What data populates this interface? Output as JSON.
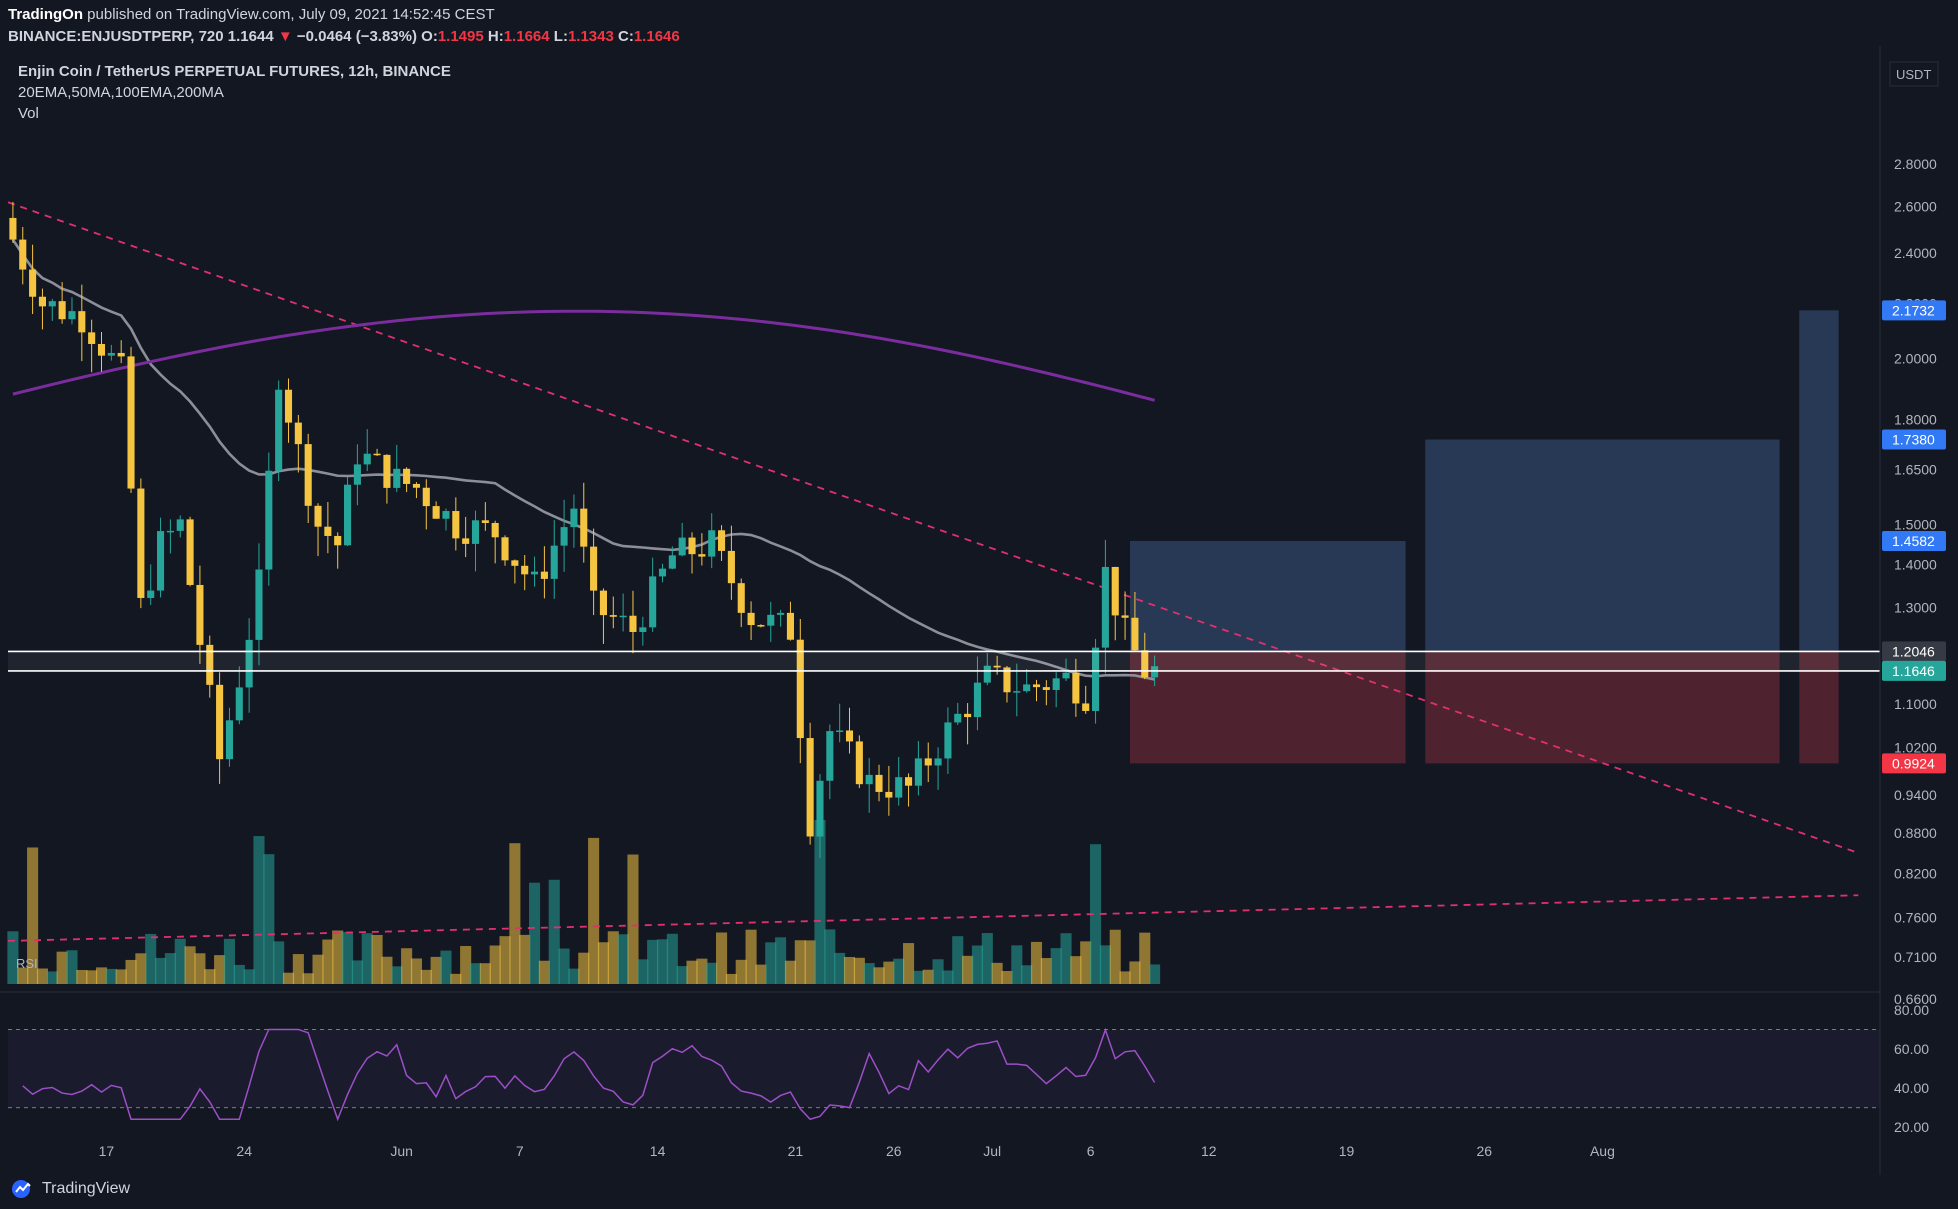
{
  "header": {
    "publisher": "TradingOn",
    "published_text": "published on TradingView.com, July 09, 2021 14:52:45 CEST",
    "symbol_line": "BINANCE:ENJUSDTPERP, 720",
    "last": "1.1644",
    "change": "−0.0464 (−3.83%)",
    "change_arrow": "▼",
    "o_label": "O:",
    "o": "1.1495",
    "h_label": "H:",
    "h": "1.1664",
    "l_label": "L:",
    "l": "1.1343",
    "c_label": "C:",
    "c": "1.1646"
  },
  "legend": {
    "title": "Enjin Coin / TetherUS PERPETUAL FUTURES, 12h, BINANCE",
    "indicators": "20EMA,50MA,100EMA,200MA",
    "vol": "Vol",
    "rsi": "RSI"
  },
  "footer": {
    "brand": "TradingView",
    "logo_icon": "tradingview-logo-icon"
  },
  "colors": {
    "background": "#131722",
    "up": "#26a69a",
    "down": "#f5c542",
    "ma50": "#8c8f99",
    "ma200": "#7b2d9e",
    "trendline": "#e0306e",
    "rsi": "#9c4fc7",
    "target": "#2b3f5e",
    "stop": "#5b2531"
  },
  "chart_data": {
    "type": "candlestick",
    "title": "Enjin Coin / TetherUS PERPETUAL FUTURES, 12h, BINANCE",
    "price_axis": {
      "currency": "USDT",
      "scale": "log",
      "ticks": [
        "2.8000",
        "2.6000",
        "2.4000",
        "2.2000",
        "2.0000",
        "1.8000",
        "1.6500",
        "1.5000",
        "1.4000",
        "1.3000",
        "1.2000",
        "1.1000",
        "1.0200",
        "0.9400",
        "0.8800",
        "0.8200",
        "0.7600",
        "0.7100",
        "0.6600"
      ],
      "range": [
        0.65,
        3.0
      ]
    },
    "time_axis": {
      "labels": [
        "17",
        "24",
        "Jun",
        "7",
        "14",
        "21",
        "26",
        "Jul",
        "6",
        "12",
        "19",
        "26",
        "Aug"
      ],
      "start": "2021-05-12",
      "end": "2021-08-15"
    },
    "price_labels": [
      {
        "value": "2.1732",
        "color": "#3179f5"
      },
      {
        "value": "1.7380",
        "color": "#3179f5"
      },
      {
        "value": "1.4582",
        "color": "#3179f5"
      },
      {
        "value": "1.2046",
        "color": "#363a45"
      },
      {
        "value": "1.1646",
        "color": "#26a69a"
      },
      {
        "value": "0.9924",
        "color": "#f23645"
      }
    ],
    "horizontal_levels": [
      1.2046,
      1.1646
    ],
    "position_boxes": [
      {
        "entry": 1.2046,
        "target": 1.4582,
        "stop": 0.9924,
        "from": "2021-07-08",
        "to": "2021-07-22"
      },
      {
        "entry": 1.2046,
        "target": 1.738,
        "stop": 0.9924,
        "from": "2021-07-23",
        "to": "2021-08-10"
      },
      {
        "entry": 1.2046,
        "target": 2.1732,
        "stop": 0.9924,
        "from": "2021-08-11",
        "to": "2021-08-13"
      }
    ],
    "candles_12h": [
      [
        1.07,
        1.11,
        1.05,
        1.09
      ],
      [
        1.1,
        1.12,
        1.06,
        1.08
      ],
      [
        1.09,
        1.12,
        1.06,
        1.11
      ],
      [
        1.11,
        1.14,
        1.09,
        1.12
      ],
      [
        1.12,
        1.23,
        1.1,
        1.21
      ],
      [
        1.21,
        1.3,
        1.19,
        1.35
      ],
      [
        1.3,
        1.52,
        1.2,
        1.24
      ],
      [
        1.25,
        1.26,
        1.17,
        1.15
      ]
    ],
    "ma_levels_12h": [
      2.25,
      1.88
    ],
    "ma_labels": [
      "MA50",
      "MA200"
    ],
    "trendlines": [
      {
        "from": [
          "2021-05-12",
          2.62
        ],
        "to": [
          "2021-08-14",
          0.85
        ]
      },
      {
        "from": [
          "2021-05-12",
          0.73
        ],
        "to": [
          "2021-08-14",
          0.79
        ]
      }
    ],
    "volume": "relative",
    "rsi": {
      "levels": [
        70,
        30
      ],
      "ticks": [
        "80.00",
        "60.00",
        "40.00",
        "20.00"
      ],
      "range": [
        18,
        82
      ]
    }
  }
}
